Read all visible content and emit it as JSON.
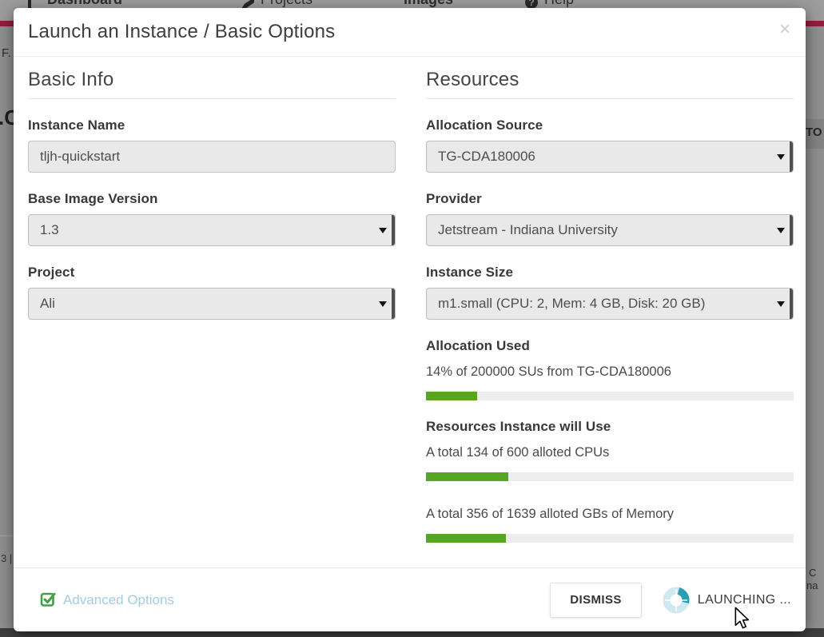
{
  "background": {
    "nav": {
      "items": [
        {
          "label": "Dashboard",
          "icon": "bar-chart-icon"
        },
        {
          "label": "Projects",
          "icon": "pencil-icon"
        },
        {
          "label": "Images",
          "icon": "grid-icon"
        },
        {
          "label": "Help",
          "icon": "help-icon"
        }
      ],
      "help_glyph": "?"
    },
    "fragments": {
      "left_top": "F.",
      "left_heading": ".C",
      "left_version": "3 |",
      "right_caps": "TO",
      "right_c": "C",
      "right_na": "na"
    }
  },
  "modal": {
    "title": "Launch an Instance / Basic Options",
    "close_glyph": "×",
    "basic": {
      "heading": "Basic Info",
      "instance_name": {
        "label": "Instance Name",
        "value": "tljh-quickstart"
      },
      "base_image_version": {
        "label": "Base Image Version",
        "value": "1.3"
      },
      "project": {
        "label": "Project",
        "value": "Ali"
      }
    },
    "resources": {
      "heading": "Resources",
      "allocation_source": {
        "label": "Allocation Source",
        "value": "TG-CDA180006"
      },
      "provider": {
        "label": "Provider",
        "value": "Jetstream - Indiana University"
      },
      "instance_size": {
        "label": "Instance Size",
        "value": "m1.small (CPU: 2, Mem: 4 GB, Disk: 20 GB)"
      },
      "allocation_used": {
        "label": "Allocation Used",
        "text": "14% of 200000 SUs from TG-CDA180006",
        "percent": 14
      },
      "instance_usage": {
        "label": "Resources Instance will Use",
        "cpu_text": "A total 134 of 600 alloted CPUs",
        "cpu_percent": 22.3,
        "mem_text": "A total 356 of 1639 alloted GBs of Memory",
        "mem_percent": 21.7
      }
    },
    "footer": {
      "advanced_label": "Advanced Options",
      "dismiss_label": "DISMISS",
      "launching_label": "LAUNCHING ..."
    }
  },
  "colors": {
    "progress_green": "#56a621",
    "crimson_bar": "#8e1f3e",
    "advanced_blue": "#a5cbe1",
    "check_green": "#43a047",
    "spinner_dark": "#2d9db4",
    "spinner_pale": "#cfe9f0"
  }
}
